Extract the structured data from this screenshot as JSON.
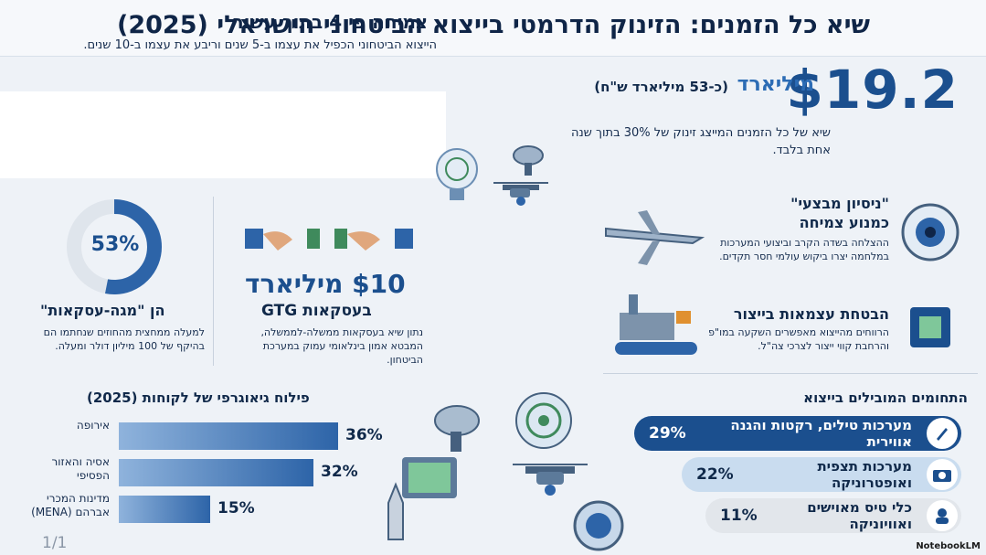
{
  "title": "שיא כל הזמנים: הזינוק הדרמטי בייצוא הביטחוני הישראלי (2025)",
  "hero": {
    "amount": "$19.2",
    "unit": "מיליארד",
    "conversion": "(כ-53 מיליארד ש\"ח)",
    "description": "שיא של כל הזמנים המייצג זינוק של 30% בתוך שנה אחת בלבד."
  },
  "growth": {
    "title": "צמיחה פי 4 בתוך עשור",
    "description": "הייצוא הביטחוני הכפיל את עצמו ב-5 שנים וריבע את עצמו ב-10 שנים."
  },
  "mega_deals": {
    "percent_label": "53%",
    "percent_value": 0.53,
    "title": "הן \"מגה-עסקאות\"",
    "description": "למעלה ממחצית מהחוזים שנחתמו הם בהיקף של 100 מיליון דולר ומעלה."
  },
  "gtg": {
    "amount": "$10 מיליארד",
    "title": "בעסקאות GTG",
    "description": "נתון שיא בעסקאות ממשלה-לממשלה, המבטא אמון בינלאומי עמוק במערכת הביטחון."
  },
  "features": [
    {
      "title_line1": "\"ניסיון מבצעי\"",
      "title_line2": "כמנוע צמיחה",
      "description": "ההצלחה בשדה הקרב וביצועי המערכות במלחמה יצרו ביקוש עולמי חסר תקדים."
    },
    {
      "title": "הבטחת עצמאות בייצור",
      "description": "הרווחים מהייצוא מאפשרים השקעה במו\"פ והרחבת קווי ייצור לצרכי צה\"ל."
    }
  ],
  "geo": {
    "title": "פילוח גיאוגרפי של לקוחות (2025)",
    "rows": [
      {
        "label": "אירופה",
        "pct_label": "36%",
        "value": 36
      },
      {
        "label": "אסיה והאזור הפסיפי",
        "pct_label": "32%",
        "value": 32
      },
      {
        "label": "מדינות המכרי אברהם (MENA)",
        "pct_label": "15%",
        "value": 15
      }
    ]
  },
  "sectors": {
    "title": "התחומים המובילים בייצוא",
    "items": [
      {
        "pct": "29%",
        "label": "מערכות טילים, רקטות והגנה אווירית",
        "icon": "missile-icon"
      },
      {
        "pct": "22%",
        "label": "מערכות תצפית ואופטרוניקה",
        "icon": "camera-icon"
      },
      {
        "pct": "11%",
        "label": "כלי טיס מאוישים ואוויוניקה",
        "icon": "pilot-icon"
      }
    ]
  },
  "page_number": "1/1",
  "brand": "NotebookLM",
  "colors": {
    "primary": "#1b4f8e",
    "accent": "#2d64a8",
    "dark": "#10294a"
  }
}
